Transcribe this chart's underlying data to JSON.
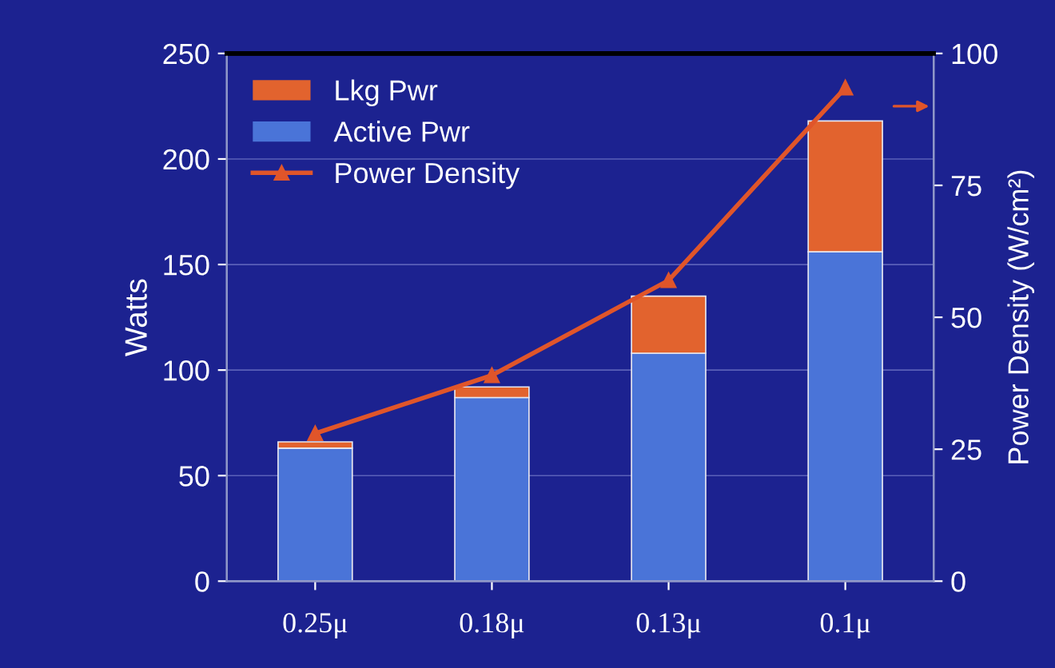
{
  "chart_data": {
    "type": "bar",
    "stacked": true,
    "categories": [
      "0.25μ",
      "0.18μ",
      "0.13μ",
      "0.1μ"
    ],
    "ylabel": "Watts",
    "y2label": "Power Density (W/cm²)",
    "ylim": [
      0,
      250
    ],
    "yticks": [
      0,
      50,
      100,
      150,
      200,
      250
    ],
    "y2lim": [
      0,
      100
    ],
    "y2ticks": [
      0,
      25,
      50,
      75,
      100
    ],
    "grid": "y",
    "legend": "top left",
    "series": [
      {
        "name": "Active Pwr",
        "color": "#4a74d8",
        "values": [
          63,
          87,
          108,
          156
        ]
      },
      {
        "name": "Lkg Pwr",
        "color": "#e2632e",
        "values": [
          3,
          5,
          27,
          62
        ]
      },
      {
        "name": "Power Density",
        "type": "line",
        "axis": "y2",
        "color": "#e0552a",
        "marker": "triangle",
        "values": [
          28,
          39,
          57,
          93.5
        ]
      }
    ]
  }
}
